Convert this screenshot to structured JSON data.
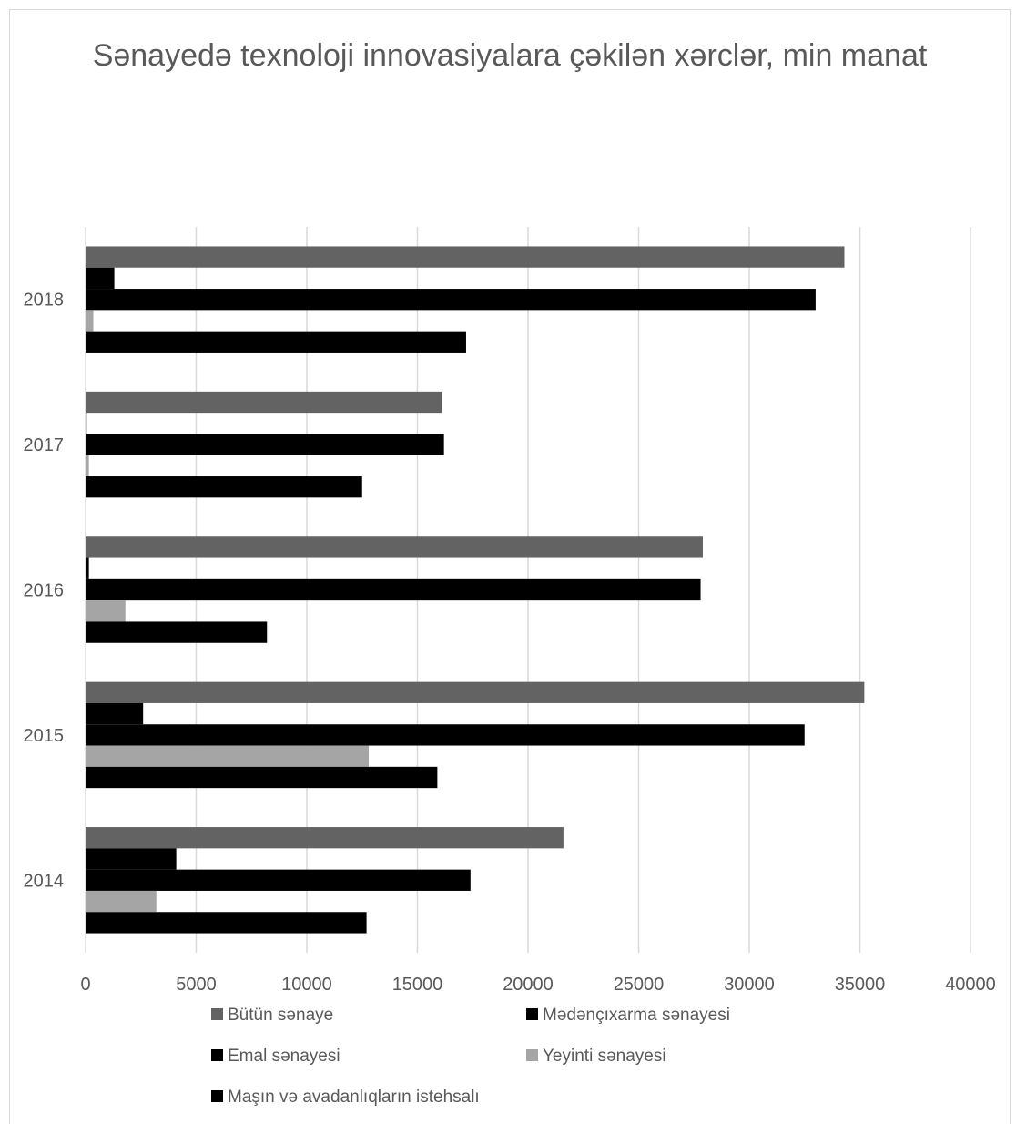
{
  "chart_data": {
    "type": "bar",
    "orientation": "horizontal",
    "title": "Sənayedə texnoloji innovasiyalara çəkilən xərclər, min manat",
    "categories": [
      "2014",
      "2015",
      "2016",
      "2017",
      "2018"
    ],
    "xlim": [
      0,
      40000
    ],
    "xticks": [
      "0",
      "5000",
      "10000",
      "15000",
      "20000",
      "25000",
      "30000",
      "35000",
      "40000"
    ],
    "grid": true,
    "legend_position": "bottom",
    "series": [
      {
        "name": "Bütün sənaye",
        "color": "#636363",
        "values": [
          21600,
          35200,
          27900,
          16100,
          34300
        ]
      },
      {
        "name": "Mədənçıxarma sənayesi",
        "color": "#000000",
        "values": [
          4100,
          2600,
          150,
          50,
          1300
        ]
      },
      {
        "name": "Emal sənayesi",
        "color": "#000000",
        "values": [
          17400,
          32500,
          27800,
          16200,
          33000
        ]
      },
      {
        "name": "Yeyinti sənayesi",
        "color": "#a5a5a5",
        "values": [
          3200,
          12800,
          1800,
          150,
          350
        ]
      },
      {
        "name": "Maşın və avadanlıqların istehsalı",
        "color": "#000000",
        "values": [
          12700,
          15900,
          8200,
          12500,
          17200
        ]
      }
    ]
  }
}
